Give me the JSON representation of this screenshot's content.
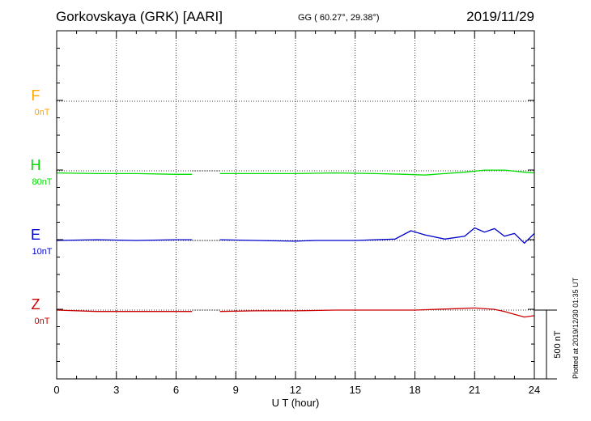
{
  "header": {
    "station": "Gorkovskaya (GRK)  [AARI]",
    "coords": "GG ( 60.27°,  29.38°)",
    "date": "2019/11/29"
  },
  "footer": {
    "plotted": "Plotted at 2019/12/30 01:35 UT"
  },
  "chart_data": {
    "type": "line",
    "title": "Gorkovskaya (GRK)  [AARI]",
    "xlabel": "U T (hour)",
    "xlim": [
      0,
      24
    ],
    "xticks": [
      0,
      3,
      6,
      9,
      12,
      15,
      18,
      21,
      24
    ],
    "grid": true,
    "scale_bar": {
      "label": "500 nT",
      "value_nT": 500
    },
    "gap_hours": [
      6.8,
      8.2
    ],
    "series": [
      {
        "name": "F",
        "offset_label": "0nT",
        "color": "#ffa500",
        "x": [],
        "y": []
      },
      {
        "name": "H",
        "offset_label": "80nT",
        "color": "#00dd00",
        "x": [
          0,
          2,
          4,
          6,
          6.8,
          8.2,
          10,
          12,
          14,
          16,
          17.5,
          18.5,
          19.5,
          20.5,
          21.5,
          22.5,
          23.5,
          24
        ],
        "y": [
          -3,
          -4,
          -4,
          -5,
          -5,
          -4,
          -4,
          -4,
          -3,
          -4,
          -5,
          -6,
          -4,
          -2,
          1,
          1,
          -2,
          -3
        ]
      },
      {
        "name": "E",
        "offset_label": "10nT",
        "color": "#0000cc",
        "x": [
          0,
          2,
          4,
          6,
          6.8,
          8.2,
          10,
          12,
          13,
          15,
          17,
          17.8,
          18.5,
          19.5,
          20.5,
          21,
          21.5,
          22,
          22.5,
          23,
          23.5,
          24
        ],
        "y": [
          0,
          1,
          0,
          1,
          1,
          1,
          0,
          -1,
          0,
          0,
          2,
          14,
          8,
          2,
          6,
          18,
          12,
          17,
          6,
          10,
          -4,
          10
        ]
      },
      {
        "name": "Z",
        "offset_label": "0nT",
        "color": "#cc0000",
        "x": [
          0,
          2,
          4,
          6,
          6.8,
          8.2,
          10,
          12,
          14,
          16,
          18,
          20,
          21,
          22,
          22.5,
          23,
          23.5,
          24
        ],
        "y": [
          0,
          -2,
          -2,
          -2,
          -2,
          -2,
          -1,
          -1,
          0,
          0,
          0,
          2,
          3,
          1,
          -2,
          -6,
          -10,
          -8
        ]
      }
    ]
  }
}
